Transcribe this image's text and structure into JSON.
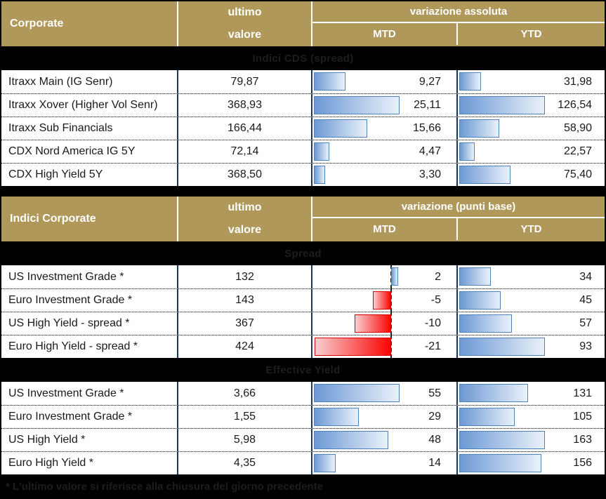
{
  "colors": {
    "header_gold": "#B0985B",
    "border_navy": "#17375D",
    "bar_blue_border": "#4F81BD",
    "bar_blue_gradient": [
      "#6C99D4",
      "#EAF1FA"
    ],
    "bar_red_border": "#D40000",
    "bar_red_gradient": [
      "#F9CFCF",
      "#FB0404"
    ],
    "background": "#000000",
    "row_background": "#FFFFFF"
  },
  "footnote": "* L'ultimo valore si riferisce alla chiusura del giorno precedente",
  "tables": [
    {
      "header": {
        "title": "Corporate",
        "value_line1": "ultimo",
        "value_line2": "valore",
        "group": "variazione assoluta",
        "mtd": "MTD",
        "ytd": "YTD"
      },
      "groups": [
        {
          "banner": "Indici CDS (spread)",
          "rows": [
            {
              "label": "Itraxx Main (IG Senr)",
              "value_label": "79,87",
              "mtd": 9.27,
              "mtd_label": "9,27",
              "ytd": 31.98,
              "ytd_label": "31,98"
            },
            {
              "label": "Itraxx Xover (Higher Vol Senr)",
              "value_label": "368,93",
              "mtd": 25.11,
              "mtd_label": "25,11",
              "ytd": 126.54,
              "ytd_label": "126,54"
            },
            {
              "label": "Itraxx Sub Financials",
              "value_label": "166,44",
              "mtd": 15.66,
              "mtd_label": "15,66",
              "ytd": 58.9,
              "ytd_label": "58,90"
            },
            {
              "label": "CDX Nord America IG 5Y",
              "value_label": "72,14",
              "mtd": 4.47,
              "mtd_label": "4,47",
              "ytd": 22.57,
              "ytd_label": "22,57"
            },
            {
              "label": "CDX High Yield 5Y",
              "value_label": "368,50",
              "mtd": 3.3,
              "mtd_label": "3,30",
              "ytd": 75.4,
              "ytd_label": "75,40"
            }
          ]
        }
      ]
    },
    {
      "header": {
        "title": "Indici Corporate",
        "value_line1": "ultimo",
        "value_line2": "valore",
        "group": "variazione (punti base)",
        "mtd": "MTD",
        "ytd": "YTD"
      },
      "groups": [
        {
          "banner": "Spread",
          "rows": [
            {
              "label": "US Investment Grade *",
              "value_label": "132",
              "mtd": 2,
              "mtd_label": "2",
              "ytd": 34,
              "ytd_label": "34"
            },
            {
              "label": "Euro Investment Grade *",
              "value_label": "143",
              "mtd": -5,
              "mtd_label": "-5",
              "ytd": 45,
              "ytd_label": "45"
            },
            {
              "label": "US High Yield  - spread *",
              "value_label": "367",
              "mtd": -10,
              "mtd_label": "-10",
              "ytd": 57,
              "ytd_label": "57"
            },
            {
              "label": "Euro High Yield  - spread *",
              "value_label": "424",
              "mtd": -21,
              "mtd_label": "-21",
              "ytd": 93,
              "ytd_label": "93"
            }
          ]
        },
        {
          "banner": "Effective Yield",
          "rows": [
            {
              "label": "US Investment Grade *",
              "value_label": "3,66",
              "mtd": 55,
              "mtd_label": "55",
              "ytd": 131,
              "ytd_label": "131"
            },
            {
              "label": "Euro Investment Grade *",
              "value_label": "1,55",
              "mtd": 29,
              "mtd_label": "29",
              "ytd": 105,
              "ytd_label": "105"
            },
            {
              "label": "US High Yield *",
              "value_label": "5,98",
              "mtd": 48,
              "mtd_label": "48",
              "ytd": 163,
              "ytd_label": "163"
            },
            {
              "label": "Euro High Yield *",
              "value_label": "4,35",
              "mtd": 14,
              "mtd_label": "14",
              "ytd": 156,
              "ytd_label": "156"
            }
          ]
        }
      ]
    }
  ],
  "chart_data": [
    {
      "type": "bar",
      "title": "Indici CDS (spread) - variazione assoluta",
      "categories": [
        "Itraxx Main (IG Senr)",
        "Itraxx Xover (Higher Vol Senr)",
        "Itraxx Sub Financials",
        "CDX Nord America IG 5Y",
        "CDX High Yield 5Y"
      ],
      "series": [
        {
          "name": "ultimo valore",
          "values": [
            79.87,
            368.93,
            166.44,
            72.14,
            368.5
          ]
        },
        {
          "name": "MTD",
          "values": [
            9.27,
            25.11,
            15.66,
            4.47,
            3.3
          ]
        },
        {
          "name": "YTD",
          "values": [
            31.98,
            126.54,
            58.9,
            22.57,
            75.4
          ]
        }
      ]
    },
    {
      "type": "bar",
      "title": "Indici Corporate - Spread - variazione (punti base)",
      "categories": [
        "US Investment Grade *",
        "Euro Investment Grade *",
        "US High Yield  - spread *",
        "Euro High Yield  - spread *"
      ],
      "series": [
        {
          "name": "ultimo valore",
          "values": [
            132,
            143,
            367,
            424
          ]
        },
        {
          "name": "MTD",
          "values": [
            2,
            -5,
            -10,
            -21
          ]
        },
        {
          "name": "YTD",
          "values": [
            34,
            45,
            57,
            93
          ]
        }
      ]
    },
    {
      "type": "bar",
      "title": "Indici Corporate - Effective Yield - variazione (punti base)",
      "categories": [
        "US Investment Grade *",
        "Euro Investment Grade *",
        "US High Yield *",
        "Euro High Yield *"
      ],
      "series": [
        {
          "name": "ultimo valore",
          "values": [
            3.66,
            1.55,
            5.98,
            4.35
          ]
        },
        {
          "name": "MTD",
          "values": [
            55,
            29,
            48,
            14
          ]
        },
        {
          "name": "YTD",
          "values": [
            131,
            105,
            163,
            156
          ]
        }
      ]
    }
  ]
}
